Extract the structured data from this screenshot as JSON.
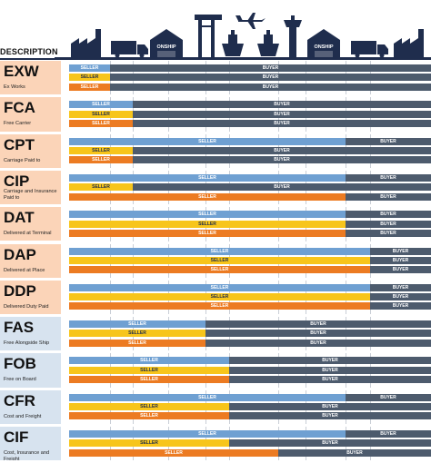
{
  "header": {
    "description_label": "DESCRIPTION"
  },
  "logo_text": "ONSHIP",
  "colors": {
    "seller_blue": "#6fa0d2",
    "seller_yellow": "#f7c51b",
    "seller_orange": "#ec7b22",
    "buyer": "#4d5b6d",
    "navy": "#1f2d4d",
    "peach": "#fbd4b8",
    "light_blue": "#d7e3ef"
  },
  "icons": [
    "factory-icon",
    "truck-icon",
    "warehouse-icon",
    "port-crane-icon",
    "ship-icon",
    "airplane-icon",
    "control-tower-icon",
    "warehouse-icon",
    "truck-icon",
    "factory-icon"
  ],
  "terms": [
    {
      "code": "EXW",
      "desc": [
        "Ex Works"
      ],
      "bg": "peach",
      "bars": [
        {
          "split": 1,
          "seller": "SELLER",
          "buyer": "BUYER"
        },
        {
          "split": 1,
          "seller": "SELLER",
          "buyer": "BUYER"
        },
        {
          "split": 1,
          "seller": "SELLER",
          "buyer": "BUYER"
        }
      ]
    },
    {
      "code": "FCA",
      "desc": [
        "Free Carrier"
      ],
      "bg": "peach",
      "bars": [
        {
          "split": 2,
          "seller": "SELLER",
          "buyer": "BUYER"
        },
        {
          "split": 2,
          "seller": "SELLER",
          "buyer": "BUYER"
        },
        {
          "split": 2,
          "seller": "SELLER",
          "buyer": "BUYER"
        }
      ]
    },
    {
      "code": "CPT",
      "desc": [
        "Carriage Paid to"
      ],
      "bg": "peach",
      "bars": [
        {
          "split": 8,
          "seller": "SELLER",
          "buyer": "BUYER"
        },
        {
          "split": 2,
          "seller": "SELLER",
          "buyer": "BUYER"
        },
        {
          "split": 2,
          "seller": "SELLER",
          "buyer": "BUYER"
        }
      ]
    },
    {
      "code": "CIP",
      "desc": [
        "Carriage and Insurance",
        "Paid to"
      ],
      "bg": "peach",
      "bars": [
        {
          "split": 8,
          "seller": "SELLER",
          "buyer": "BUYER"
        },
        {
          "split": 2,
          "seller": "SELLER",
          "buyer": "BUYER"
        },
        {
          "split": 8,
          "seller": "SELLER",
          "buyer": "BUYER"
        }
      ]
    },
    {
      "code": "DAT",
      "desc": [
        "Delivered at Terminal"
      ],
      "bg": "peach",
      "bars": [
        {
          "split": 8,
          "seller": "SELLER",
          "buyer": "BUYER"
        },
        {
          "split": 8,
          "seller": "SELLER",
          "buyer": "BUYER"
        },
        {
          "split": 8,
          "seller": "SELLER",
          "buyer": "BUYER"
        }
      ]
    },
    {
      "code": "DAP",
      "desc": [
        "Delivered at Place"
      ],
      "bg": "peach",
      "bars": [
        {
          "split": 9,
          "seller": "SELLER",
          "buyer": "BUYER"
        },
        {
          "split": 9,
          "seller": "SELLER",
          "buyer": "BUYER"
        },
        {
          "split": 9,
          "seller": "SELLER",
          "buyer": "BUYER"
        }
      ]
    },
    {
      "code": "DDP",
      "desc": [
        "Delivered Duty Paid"
      ],
      "bg": "peach",
      "bars": [
        {
          "split": 9,
          "seller": "SELLER",
          "buyer": "BUYER"
        },
        {
          "split": 9,
          "seller": "SELLER",
          "buyer": "BUYER"
        },
        {
          "split": 9,
          "seller": "SELLER",
          "buyer": "BUYER"
        }
      ]
    },
    {
      "code": "FAS",
      "desc": [
        "Free Alongside Ship"
      ],
      "bg": "light_blue",
      "bars": [
        {
          "split": 4,
          "seller": "SELLER",
          "buyer": "BUYER"
        },
        {
          "split": 4,
          "seller": "SELLER",
          "buyer": "BUYER"
        },
        {
          "split": 4,
          "seller": "SELLER",
          "buyer": "BUYER"
        }
      ]
    },
    {
      "code": "FOB",
      "desc": [
        "Free on Board"
      ],
      "bg": "light_blue",
      "bars": [
        {
          "split": 5,
          "seller": "SELLER",
          "buyer": "BUYER"
        },
        {
          "split": 5,
          "seller": "SELLER",
          "buyer": "BUYER"
        },
        {
          "split": 5,
          "seller": "SELLER",
          "buyer": "BUYER"
        }
      ]
    },
    {
      "code": "CFR",
      "desc": [
        "Cost and Freight"
      ],
      "bg": "light_blue",
      "bars": [
        {
          "split": 8,
          "seller": "SELLER",
          "buyer": "BUYER"
        },
        {
          "split": 5,
          "seller": "SELLER",
          "buyer": "BUYER"
        },
        {
          "split": 5,
          "seller": "SELLER",
          "buyer": "BUYER"
        }
      ]
    },
    {
      "code": "CIF",
      "desc": [
        "Cost, Insurance and Freight"
      ],
      "bg": "light_blue",
      "bars": [
        {
          "split": 8,
          "seller": "SELLER",
          "buyer": "BUYER"
        },
        {
          "split": 5,
          "seller": "SELLER",
          "buyer": "BUYER"
        },
        {
          "split": 6,
          "seller": "SELLER",
          "buyer": "BUYER"
        }
      ]
    }
  ]
}
